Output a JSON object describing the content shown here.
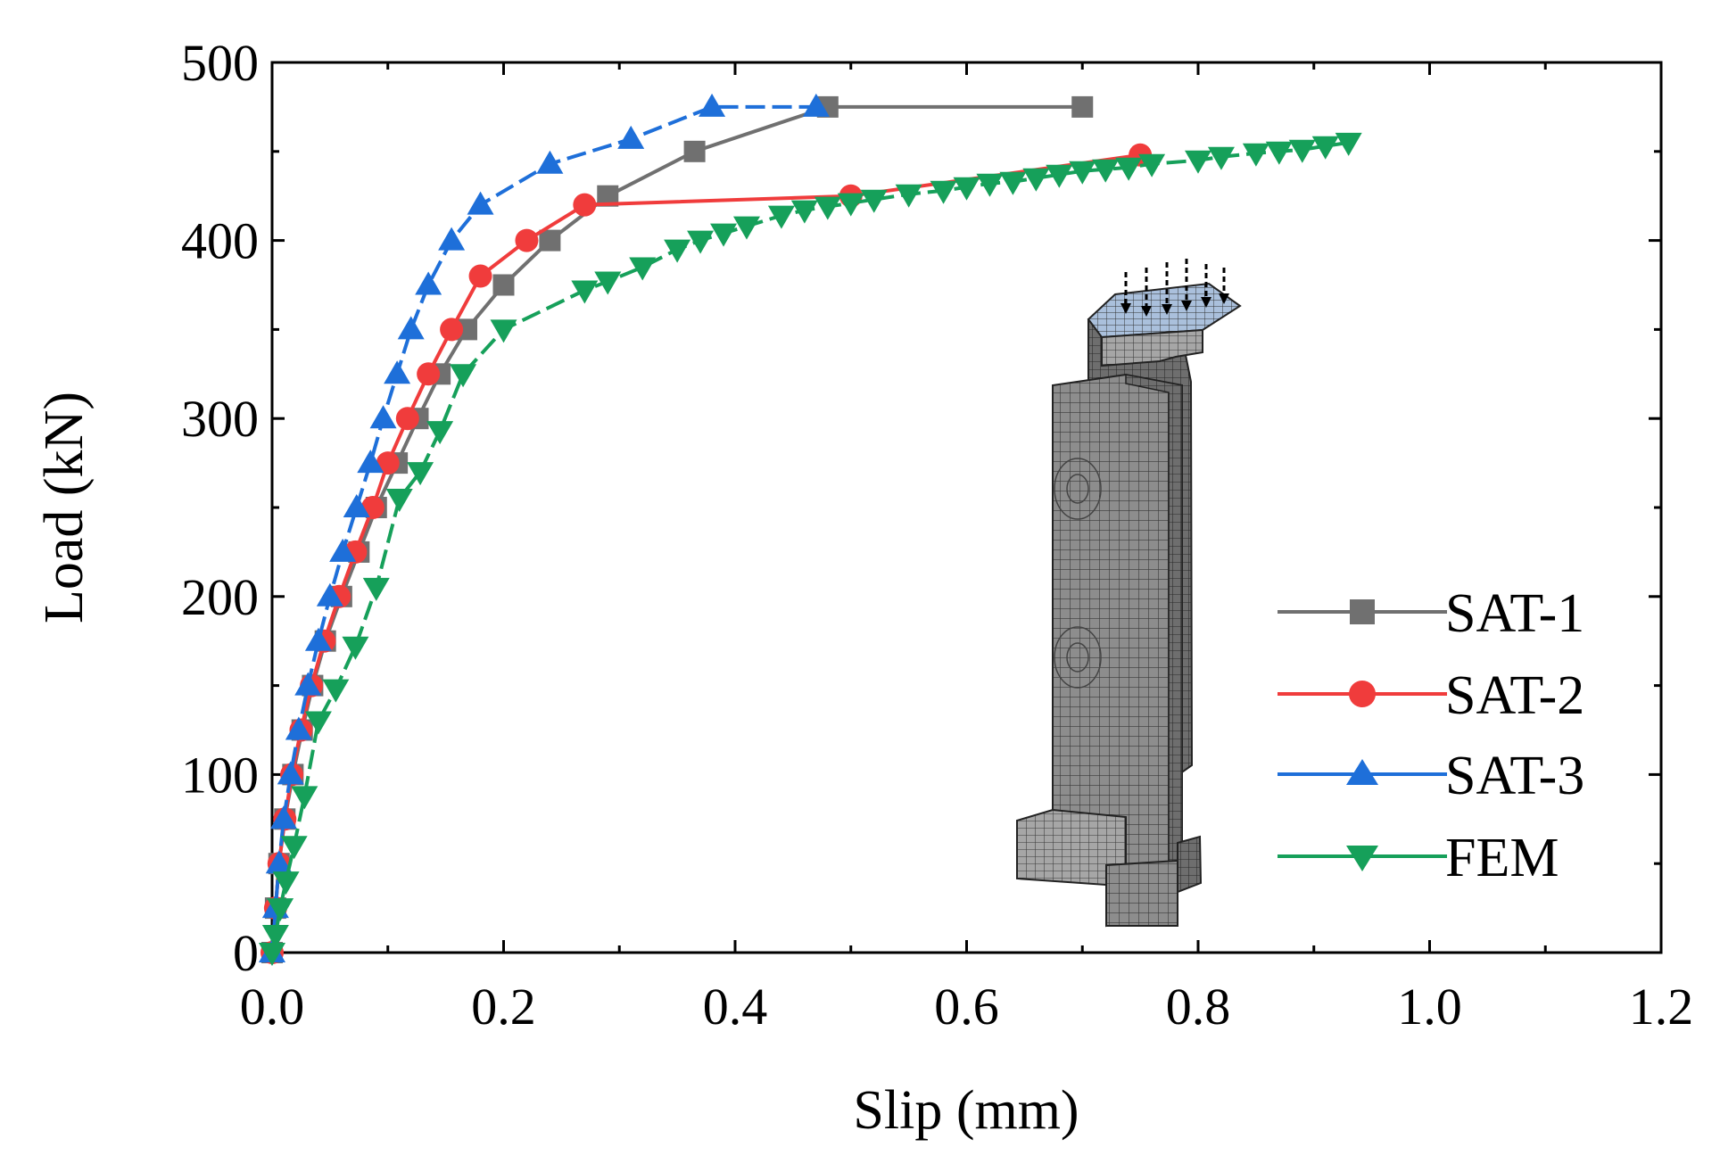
{
  "chart_data": {
    "type": "line",
    "title": "",
    "xlabel": "Slip (mm)",
    "ylabel": "Load (kN)",
    "xlim": [
      0,
      1.2
    ],
    "ylim": [
      0,
      500
    ],
    "x_ticks": [
      "0.0",
      "0.2",
      "0.4",
      "0.6",
      "0.8",
      "1.0",
      "1.2"
    ],
    "y_ticks": [
      "0",
      "100",
      "200",
      "300",
      "400",
      "500"
    ],
    "legend_position": "bottom-right",
    "inset": "3D finite element mesh of push-out specimen with applied load arrows",
    "series": [
      {
        "name": "SAT-1",
        "color": "#707070",
        "marker": "square",
        "dash": "solid",
        "x": [
          0,
          0.003,
          0.006,
          0.011,
          0.018,
          0.026,
          0.035,
          0.046,
          0.06,
          0.075,
          0.09,
          0.108,
          0.126,
          0.145,
          0.168,
          0.2,
          0.24,
          0.29,
          0.365,
          0.48,
          0.7
        ],
        "y": [
          0,
          25,
          50,
          75,
          100,
          125,
          150,
          175,
          200,
          225,
          250,
          275,
          300,
          325,
          350,
          375,
          400,
          425,
          450,
          475,
          475
        ]
      },
      {
        "name": "SAT-2",
        "color": "#f03c3c",
        "marker": "circle",
        "dash": "solid",
        "x": [
          0,
          0.003,
          0.006,
          0.011,
          0.017,
          0.025,
          0.034,
          0.045,
          0.058,
          0.072,
          0.087,
          0.1,
          0.117,
          0.135,
          0.155,
          0.18,
          0.22,
          0.27,
          0.5,
          0.75
        ],
        "y": [
          0,
          25,
          50,
          75,
          100,
          125,
          150,
          175,
          200,
          225,
          250,
          275,
          300,
          325,
          350,
          380,
          400,
          420,
          425,
          448
        ]
      },
      {
        "name": "SAT-3",
        "color": "#1e6fd9",
        "marker": "triangle-up",
        "dash": "dashed",
        "x": [
          0,
          0.003,
          0.006,
          0.01,
          0.016,
          0.023,
          0.031,
          0.04,
          0.05,
          0.061,
          0.073,
          0.085,
          0.096,
          0.108,
          0.12,
          0.135,
          0.155,
          0.18,
          0.24,
          0.31,
          0.38,
          0.47
        ],
        "y": [
          0,
          25,
          50,
          75,
          100,
          125,
          150,
          175,
          200,
          225,
          250,
          275,
          300,
          325,
          350,
          375,
          400,
          420,
          443,
          457,
          475,
          475
        ]
      },
      {
        "name": "FEM",
        "color": "#16a05a",
        "marker": "triangle-down",
        "dash": "dashed",
        "x": [
          0,
          0.003,
          0.007,
          0.012,
          0.019,
          0.028,
          0.04,
          0.055,
          0.072,
          0.09,
          0.11,
          0.128,
          0.145,
          0.165,
          0.2,
          0.27,
          0.29,
          0.32,
          0.35,
          0.37,
          0.39,
          0.41,
          0.44,
          0.46,
          0.48,
          0.5,
          0.52,
          0.55,
          0.58,
          0.6,
          0.62,
          0.64,
          0.66,
          0.68,
          0.7,
          0.72,
          0.74,
          0.76,
          0.8,
          0.82,
          0.85,
          0.87,
          0.89,
          0.91,
          0.93
        ],
        "y": [
          0,
          10,
          25,
          40,
          60,
          88,
          130,
          148,
          172,
          205,
          255,
          270,
          293,
          325,
          350,
          372,
          377,
          385,
          395,
          400,
          404,
          408,
          414,
          417,
          419,
          421,
          423,
          426,
          428,
          430,
          432,
          433,
          435,
          437,
          439,
          440,
          441,
          443,
          445,
          447,
          449,
          450,
          451,
          453,
          455
        ]
      }
    ]
  }
}
